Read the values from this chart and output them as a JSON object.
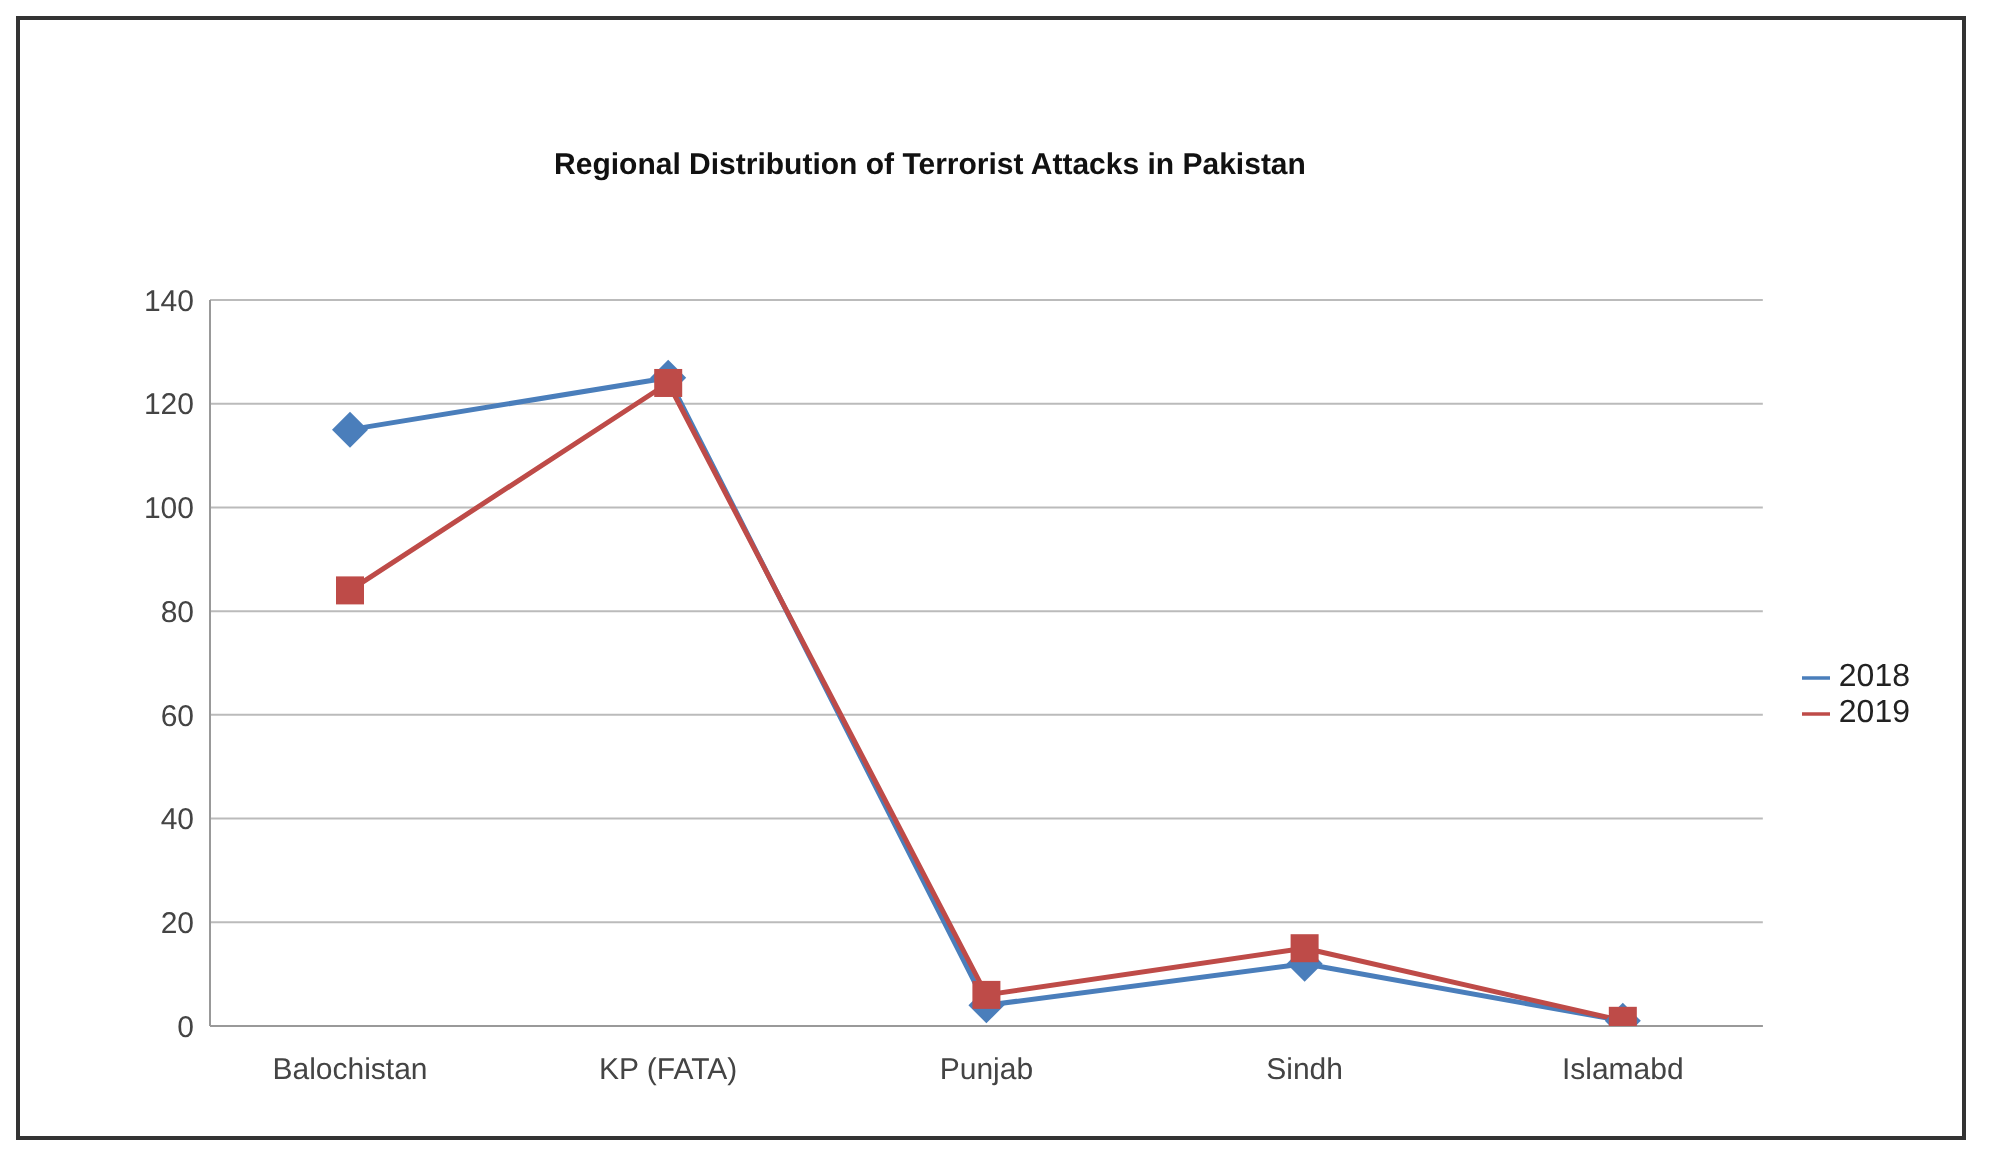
{
  "chart_data": {
    "type": "line",
    "title": "Regional Distribution of Terrorist Attacks in Pakistan",
    "categories": [
      "Balochistan",
      "KP (FATA)",
      "Punjab",
      "Sindh",
      "Islamabd"
    ],
    "series": [
      {
        "name": "2018",
        "color": "#4a7ebb",
        "values": [
          115,
          125,
          4,
          12,
          1
        ],
        "marker": "diamond"
      },
      {
        "name": "2019",
        "color": "#be4b48",
        "values": [
          84,
          124,
          6,
          15,
          1
        ],
        "marker": "square"
      }
    ],
    "ylim": [
      0,
      140
    ],
    "yticks": [
      0,
      20,
      40,
      60,
      80,
      100,
      120,
      140
    ],
    "grid": "y",
    "legend": "right"
  }
}
